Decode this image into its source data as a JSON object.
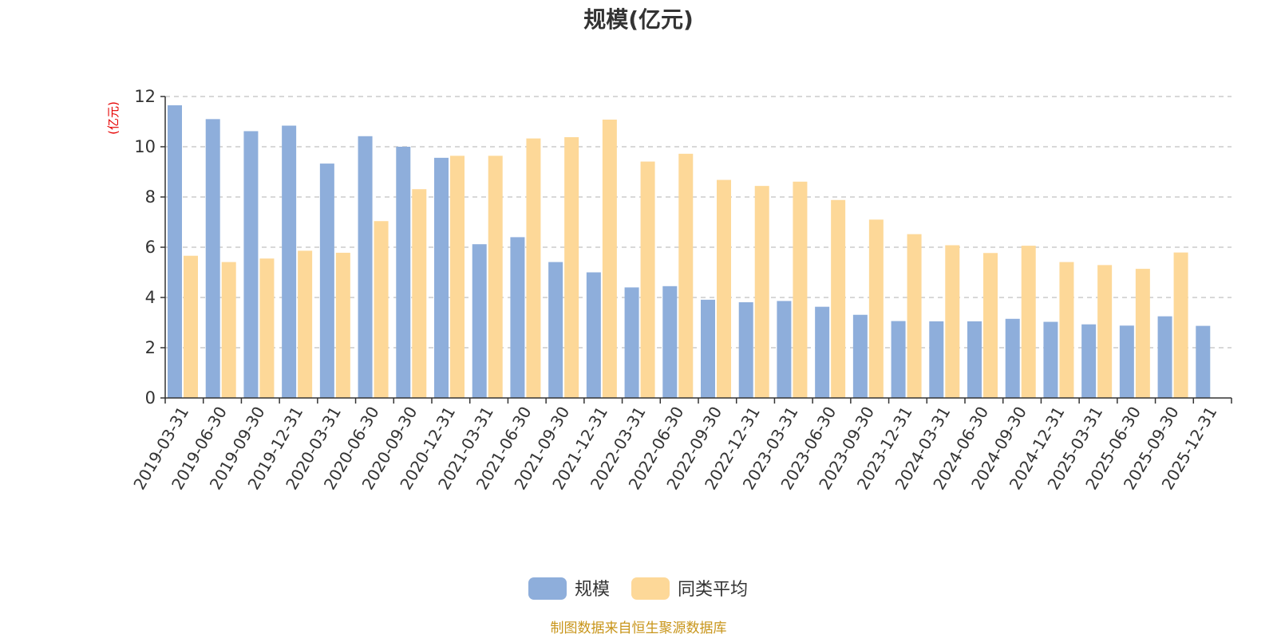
{
  "chart_data": {
    "type": "bar",
    "title": "规模(亿元)",
    "ylabel": "(亿元)",
    "xlabel": "",
    "ylim": [
      0,
      12
    ],
    "yticks": [
      0,
      2,
      4,
      6,
      8,
      10,
      12
    ],
    "grid": true,
    "legend_position": "bottom-center",
    "categories": [
      "2019-03-31",
      "2019-06-30",
      "2019-09-30",
      "2019-12-31",
      "2020-03-31",
      "2020-06-30",
      "2020-09-30",
      "2020-12-31",
      "2021-03-31",
      "2021-06-30",
      "2021-09-30",
      "2021-12-31",
      "2022-03-31",
      "2022-06-30",
      "2022-09-30",
      "2022-12-31",
      "2023-03-31",
      "2023-06-30",
      "2023-09-30",
      "2023-12-31",
      "2024-03-31",
      "2024-06-30",
      "2024-09-30",
      "2024-12-31",
      "2025-03-31",
      "2025-06-30",
      "2025-09-30",
      "2025-12-31"
    ],
    "series": [
      {
        "name": "规模",
        "color": "#8eaedb",
        "values": [
          11.65,
          11.1,
          10.62,
          10.84,
          9.33,
          10.42,
          10.0,
          9.56,
          6.12,
          6.4,
          5.41,
          5.0,
          4.4,
          4.45,
          3.91,
          3.81,
          3.86,
          3.63,
          3.31,
          3.06,
          3.05,
          3.05,
          3.15,
          3.03,
          2.93,
          2.88,
          3.25,
          2.87
        ]
      },
      {
        "name": "同类平均",
        "color": "#fdd898",
        "values": [
          5.66,
          5.41,
          5.55,
          5.86,
          5.78,
          7.04,
          8.31,
          9.64,
          9.64,
          10.33,
          10.38,
          11.08,
          9.41,
          9.72,
          8.68,
          8.44,
          8.61,
          7.88,
          7.1,
          6.52,
          6.08,
          5.77,
          6.06,
          5.41,
          5.29,
          5.14,
          5.79,
          null
        ]
      }
    ]
  },
  "footer": {
    "source": "制图数据来自恒生聚源数据库"
  }
}
